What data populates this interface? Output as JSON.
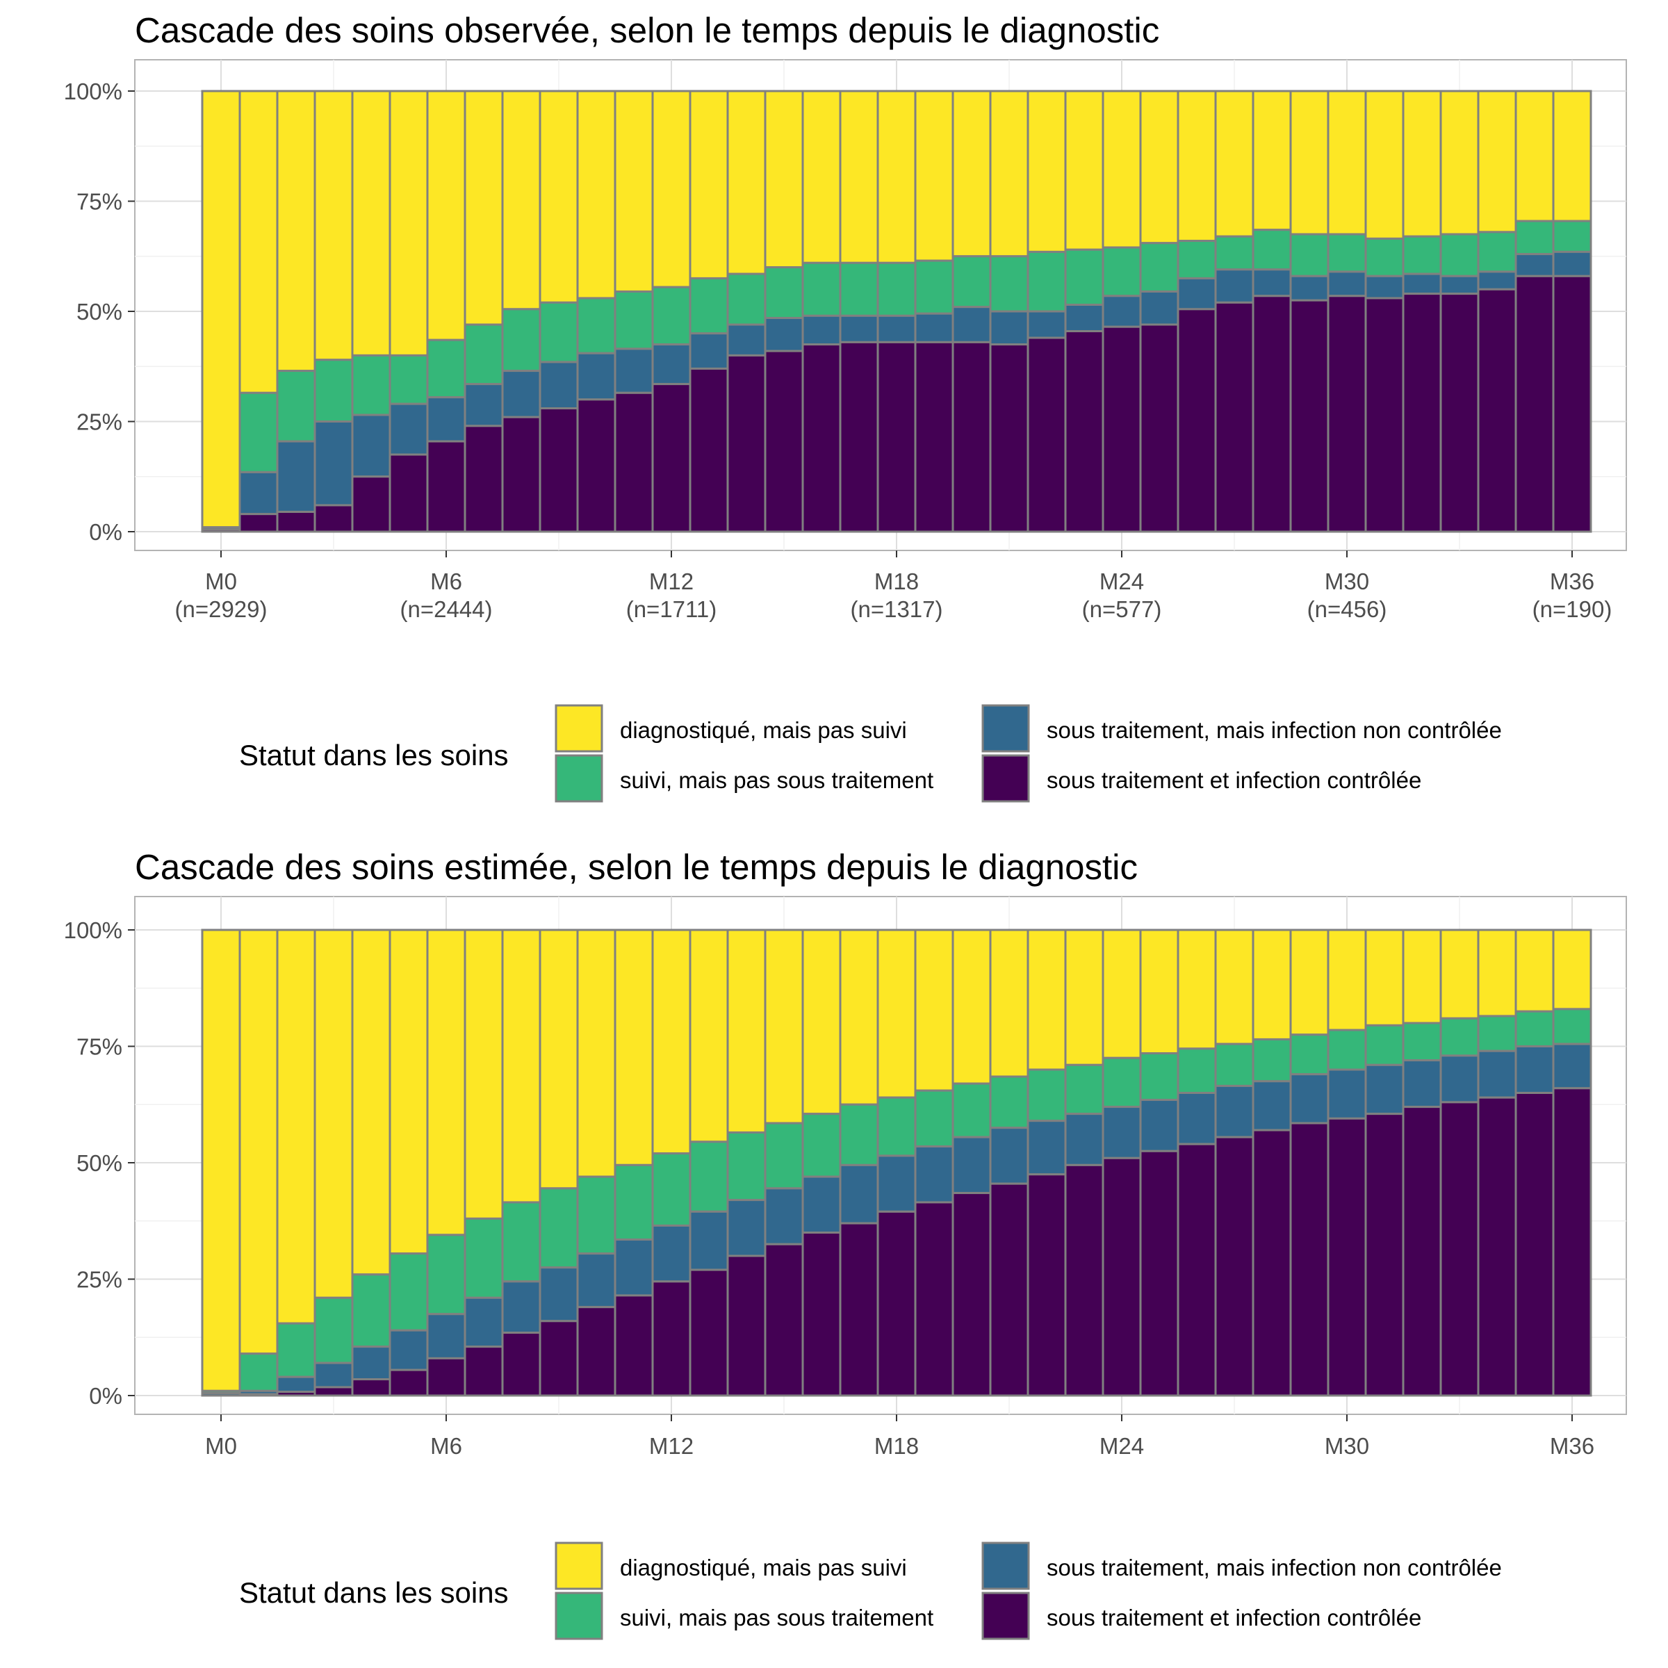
{
  "legend": {
    "title": "Statut dans les soins",
    "items": [
      {
        "label": "diagnostiqué, mais pas suivi",
        "color": "#FDE725"
      },
      {
        "label": "suivi, mais pas sous traitement",
        "color": "#35B779"
      },
      {
        "label": "sous traitement, mais infection non contrôlée",
        "color": "#31688E"
      },
      {
        "label": "sous traitement et infection contrôlée",
        "color": "#440154"
      }
    ]
  },
  "chart_data": [
    {
      "type": "bar",
      "stacked": true,
      "title": "Cascade des soins observée, selon le temps depuis le diagnostic",
      "xlabel": "",
      "ylabel": "",
      "ylim": [
        0,
        1
      ],
      "y_ticks": [
        "0%",
        "25%",
        "50%",
        "75%",
        "100%"
      ],
      "x_ticks": [
        {
          "month": 0,
          "label": "M0",
          "sub": "(n=2929)"
        },
        {
          "month": 6,
          "label": "M6",
          "sub": "(n=2444)"
        },
        {
          "month": 12,
          "label": "M12",
          "sub": "(n=1711)"
        },
        {
          "month": 18,
          "label": "M18",
          "sub": "(n=1317)"
        },
        {
          "month": 24,
          "label": "M24",
          "sub": "(n=577)"
        },
        {
          "month": 30,
          "label": "M30",
          "sub": "(n=456)"
        },
        {
          "month": 36,
          "label": "M36",
          "sub": "(n=190)"
        }
      ],
      "months": [
        0,
        1,
        2,
        3,
        4,
        5,
        6,
        7,
        8,
        9,
        10,
        11,
        12,
        13,
        14,
        15,
        16,
        17,
        18,
        19,
        20,
        21,
        22,
        23,
        24,
        25,
        26,
        27,
        28,
        29,
        30,
        31,
        32,
        33,
        34,
        35,
        36
      ],
      "cumulative": {
        "controlled": [
          0.005,
          0.04,
          0.045,
          0.06,
          0.125,
          0.175,
          0.205,
          0.24,
          0.26,
          0.28,
          0.3,
          0.315,
          0.335,
          0.37,
          0.4,
          0.41,
          0.425,
          0.43,
          0.43,
          0.43,
          0.43,
          0.425,
          0.44,
          0.455,
          0.465,
          0.47,
          0.505,
          0.52,
          0.535,
          0.525,
          0.535,
          0.53,
          0.54,
          0.54,
          0.55,
          0.58,
          0.58
        ],
        "treated": [
          0.01,
          0.135,
          0.205,
          0.25,
          0.265,
          0.29,
          0.305,
          0.335,
          0.365,
          0.385,
          0.405,
          0.415,
          0.425,
          0.45,
          0.47,
          0.485,
          0.49,
          0.49,
          0.49,
          0.495,
          0.51,
          0.5,
          0.5,
          0.515,
          0.535,
          0.545,
          0.575,
          0.595,
          0.595,
          0.58,
          0.59,
          0.58,
          0.585,
          0.58,
          0.59,
          0.63,
          0.635
        ],
        "followed": [
          0.01,
          0.315,
          0.365,
          0.39,
          0.4,
          0.4,
          0.435,
          0.47,
          0.505,
          0.52,
          0.53,
          0.545,
          0.555,
          0.575,
          0.585,
          0.6,
          0.61,
          0.61,
          0.61,
          0.615,
          0.625,
          0.625,
          0.635,
          0.64,
          0.645,
          0.655,
          0.66,
          0.67,
          0.685,
          0.675,
          0.675,
          0.665,
          0.67,
          0.675,
          0.68,
          0.705,
          0.705
        ]
      }
    },
    {
      "type": "bar",
      "stacked": true,
      "title": "Cascade des soins estimée, selon le temps depuis le diagnostic",
      "xlabel": "",
      "ylabel": "",
      "ylim": [
        0,
        1
      ],
      "y_ticks": [
        "0%",
        "25%",
        "50%",
        "75%",
        "100%"
      ],
      "x_ticks": [
        {
          "month": 0,
          "label": "M0"
        },
        {
          "month": 6,
          "label": "M6"
        },
        {
          "month": 12,
          "label": "M12"
        },
        {
          "month": 18,
          "label": "M18"
        },
        {
          "month": 24,
          "label": "M24"
        },
        {
          "month": 30,
          "label": "M30"
        },
        {
          "month": 36,
          "label": "M36"
        }
      ],
      "months": [
        0,
        1,
        2,
        3,
        4,
        5,
        6,
        7,
        8,
        9,
        10,
        11,
        12,
        13,
        14,
        15,
        16,
        17,
        18,
        19,
        20,
        21,
        22,
        23,
        24,
        25,
        26,
        27,
        28,
        29,
        30,
        31,
        32,
        33,
        34,
        35,
        36
      ],
      "cumulative": {
        "controlled": [
          0.0,
          0.003,
          0.008,
          0.018,
          0.035,
          0.055,
          0.08,
          0.105,
          0.135,
          0.16,
          0.19,
          0.215,
          0.245,
          0.27,
          0.3,
          0.325,
          0.35,
          0.37,
          0.395,
          0.415,
          0.435,
          0.455,
          0.475,
          0.495,
          0.51,
          0.525,
          0.54,
          0.555,
          0.57,
          0.585,
          0.595,
          0.605,
          0.62,
          0.63,
          0.64,
          0.65,
          0.66
        ],
        "treated": [
          0.005,
          0.01,
          0.04,
          0.07,
          0.105,
          0.14,
          0.175,
          0.21,
          0.245,
          0.275,
          0.305,
          0.335,
          0.365,
          0.395,
          0.42,
          0.445,
          0.47,
          0.495,
          0.515,
          0.535,
          0.555,
          0.575,
          0.59,
          0.605,
          0.62,
          0.635,
          0.65,
          0.665,
          0.675,
          0.69,
          0.7,
          0.71,
          0.72,
          0.73,
          0.74,
          0.75,
          0.755
        ],
        "followed": [
          0.01,
          0.09,
          0.155,
          0.21,
          0.26,
          0.305,
          0.345,
          0.38,
          0.415,
          0.445,
          0.47,
          0.495,
          0.52,
          0.545,
          0.565,
          0.585,
          0.605,
          0.625,
          0.64,
          0.655,
          0.67,
          0.685,
          0.7,
          0.71,
          0.725,
          0.735,
          0.745,
          0.755,
          0.765,
          0.775,
          0.785,
          0.795,
          0.8,
          0.81,
          0.815,
          0.825,
          0.83
        ]
      }
    }
  ]
}
